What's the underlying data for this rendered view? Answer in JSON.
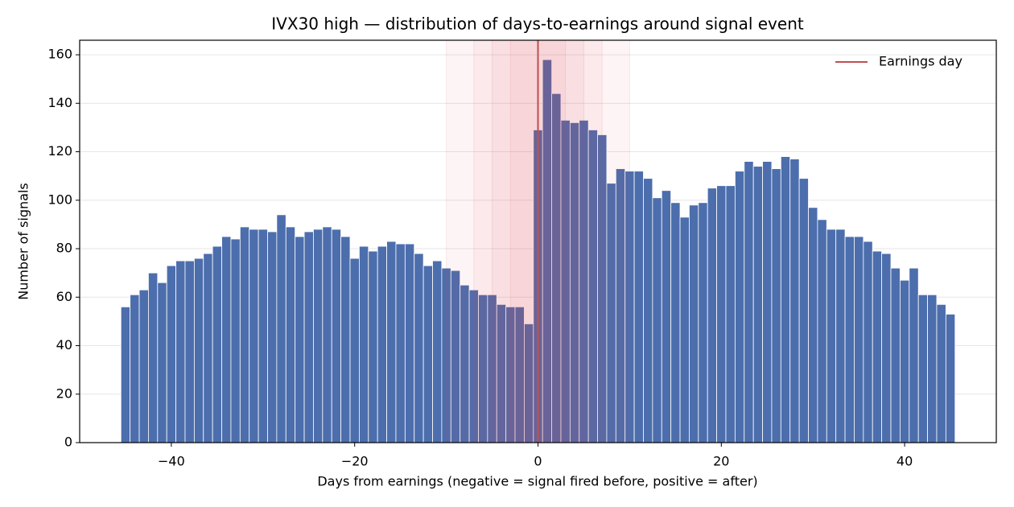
{
  "chart_data": {
    "type": "histogram",
    "title": "IVX30 high — distribution of days-to-earnings around signal event",
    "x_label": "Days from earnings (negative = signal fired before, positive = after)",
    "y_label": "Number of signals",
    "bins": [
      -45.5,
      -44.5,
      -43.5,
      -42.5,
      -41.5,
      -40.5,
      -39.5,
      -38.5,
      -37.5,
      -36.5,
      -35.5,
      -34.5,
      -33.5,
      -32.5,
      -31.5,
      -30.5,
      -29.5,
      -28.5,
      -27.5,
      -26.5,
      -25.5,
      -24.5,
      -23.5,
      -22.5,
      -21.5,
      -20.5,
      -19.5,
      -18.5,
      -17.5,
      -16.5,
      -15.5,
      -14.5,
      -13.5,
      -12.5,
      -11.5,
      -10.5,
      -9.5,
      -8.5,
      -7.5,
      -6.5,
      -5.5,
      -4.5,
      -3.5,
      -2.5,
      -1.5,
      -0.5,
      0.5,
      1.5,
      2.5,
      3.5,
      4.5,
      5.5,
      6.5,
      7.5,
      8.5,
      9.5,
      10.5,
      11.5,
      12.5,
      13.5,
      14.5,
      15.5,
      16.5,
      17.5,
      18.5,
      19.5,
      20.5,
      21.5,
      22.5,
      23.5,
      24.5,
      25.5,
      26.5,
      27.5,
      28.5,
      29.5,
      30.5,
      31.5,
      32.5,
      33.5,
      34.5,
      35.5,
      36.5,
      37.5,
      38.5,
      39.5,
      40.5,
      41.5,
      42.5,
      43.5,
      44.5,
      45.5
    ],
    "values": [
      56,
      61,
      63,
      70,
      66,
      73,
      75,
      75,
      76,
      78,
      81,
      85,
      84,
      89,
      88,
      88,
      87,
      94,
      89,
      85,
      87,
      88,
      89,
      88,
      85,
      76,
      81,
      79,
      81,
      83,
      82,
      82,
      78,
      73,
      75,
      72,
      71,
      65,
      63,
      61,
      61,
      57,
      56,
      56,
      49,
      129,
      158,
      144,
      133,
      132,
      133,
      129,
      127,
      107,
      113,
      112,
      112,
      109,
      101,
      104,
      99,
      93,
      98,
      99,
      105,
      106,
      106,
      112,
      116,
      114,
      116,
      113,
      118,
      117,
      109,
      97,
      92,
      88,
      88,
      85,
      85,
      83,
      79,
      78,
      72,
      67,
      72,
      61,
      61,
      57,
      53
    ],
    "color": "#4c6ead",
    "shaded_windows": [
      [
        -10,
        10
      ],
      [
        -7,
        7
      ],
      [
        -5,
        5
      ],
      [
        -3,
        3
      ]
    ],
    "shade_color": "#d9485a",
    "vline": {
      "x": 0,
      "name": "Earnings day",
      "color": "#c0504d"
    },
    "legend": "upper right",
    "grid": true,
    "xlim": [
      -50,
      50
    ],
    "ylim": [
      0,
      166
    ],
    "xticks": [
      {
        "value": -40,
        "label": "−40"
      },
      {
        "value": -20,
        "label": "−20"
      },
      0,
      20,
      40
    ],
    "yticks": [
      0,
      20,
      40,
      60,
      80,
      100,
      120,
      140,
      160
    ]
  }
}
